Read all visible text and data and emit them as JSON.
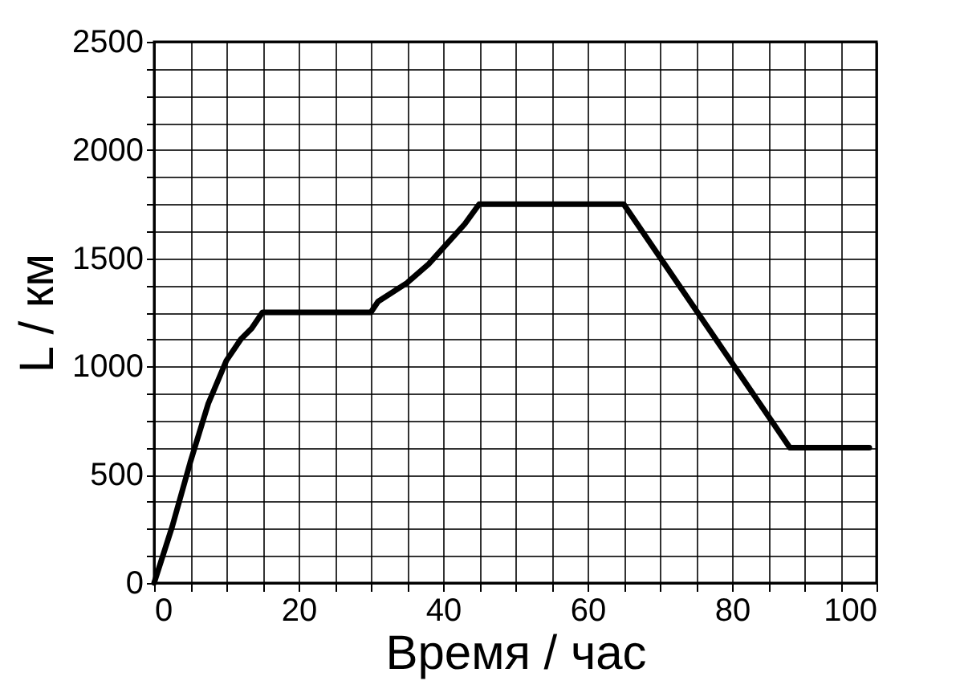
{
  "chart_data": {
    "type": "line",
    "xlabel": "Время / час",
    "ylabel": "L / км",
    "x": [
      0,
      2.5,
      5,
      7.5,
      10,
      12,
      13.5,
      15,
      30,
      31,
      35,
      38,
      40,
      43,
      45,
      65,
      88,
      99
    ],
    "series": [
      {
        "color": "#000000",
        "values": [
          0,
          260,
          557,
          829,
          1027,
          1126,
          1176,
          1250,
          1250,
          1300,
          1386,
          1473,
          1547,
          1658,
          1750,
          1750,
          625,
          625
        ]
      }
    ],
    "xlim": [
      0,
      100
    ],
    "ylim": [
      0,
      2500
    ],
    "xticks": [
      0,
      {
        "value": 5,
        "label": null
      },
      {
        "value": 10,
        "label": null
      },
      {
        "value": 15,
        "label": null
      },
      20,
      {
        "value": 25,
        "label": null
      },
      {
        "value": 30,
        "label": null
      },
      {
        "value": 35,
        "label": null
      },
      40,
      {
        "value": 45,
        "label": null
      },
      {
        "value": 50,
        "label": null
      },
      {
        "value": 55,
        "label": null
      },
      60,
      {
        "value": 65,
        "label": null
      },
      {
        "value": 70,
        "label": null
      },
      {
        "value": 75,
        "label": null
      },
      80,
      {
        "value": 85,
        "label": null
      },
      {
        "value": 90,
        "label": null
      },
      {
        "value": 95,
        "label": null
      },
      100
    ],
    "yticks": [
      0,
      {
        "value": 125,
        "label": null
      },
      {
        "value": 250,
        "label": null
      },
      {
        "value": 375,
        "label": null
      },
      500,
      {
        "value": 625,
        "label": null
      },
      {
        "value": 750,
        "label": null
      },
      {
        "value": 875,
        "label": null
      },
      1000,
      {
        "value": 1125,
        "label": null
      },
      {
        "value": 1250,
        "label": null
      },
      {
        "value": 1375,
        "label": null
      },
      1500,
      {
        "value": 1625,
        "label": null
      },
      {
        "value": 1750,
        "label": null
      },
      {
        "value": 1875,
        "label": null
      },
      2000,
      {
        "value": 2125,
        "label": null
      },
      {
        "value": 2250,
        "label": null
      },
      {
        "value": 2375,
        "label": null
      },
      2500
    ],
    "grid": true,
    "marker": "none",
    "line_style": "solid"
  }
}
